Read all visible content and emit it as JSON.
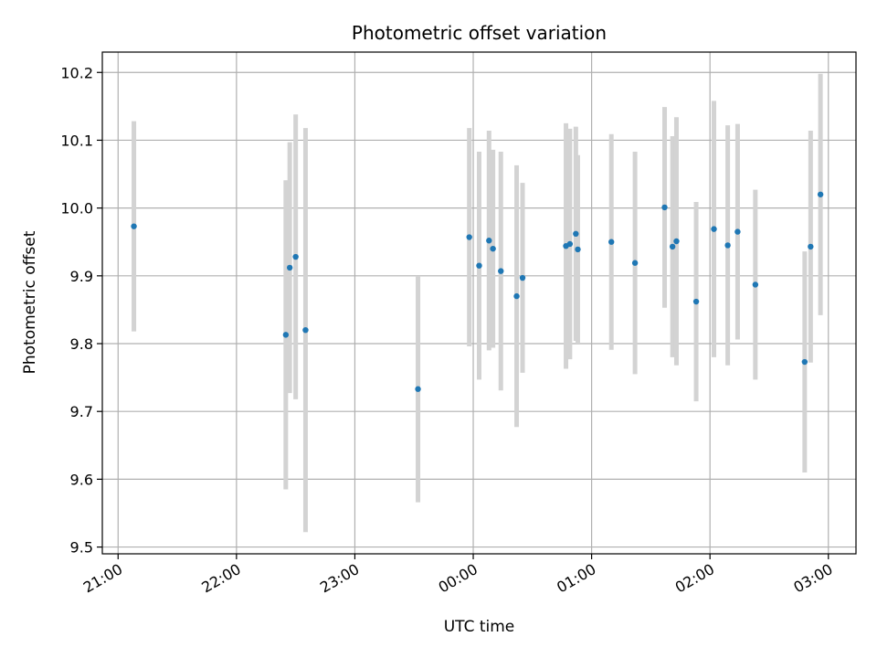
{
  "chart_data": {
    "type": "scatter",
    "title": "Photometric offset variation",
    "xlabel": "UTC time",
    "ylabel": "Photometric offset",
    "xlim": [
      "20:52",
      "03:14"
    ],
    "ylim": [
      9.49,
      10.23
    ],
    "grid": true,
    "x_ticks": [
      "21:00",
      "22:00",
      "23:00",
      "00:00",
      "01:00",
      "02:00",
      "03:00"
    ],
    "y_ticks": [
      "9.5",
      "9.6",
      "9.7",
      "9.8",
      "9.9",
      "10.0",
      "10.1",
      "10.2"
    ],
    "point_color": "#1f77b4",
    "errorbar_color": "#d3d3d3",
    "points": [
      {
        "x": "21:08",
        "y": 9.973,
        "yerr": 0.155
      },
      {
        "x": "22:25",
        "y": 9.813,
        "yerr": 0.228
      },
      {
        "x": "22:27",
        "y": 9.912,
        "yerr": 0.185
      },
      {
        "x": "22:30",
        "y": 9.928,
        "yerr": 0.21
      },
      {
        "x": "22:35",
        "y": 9.82,
        "yerr": 0.298
      },
      {
        "x": "23:32",
        "y": 9.733,
        "yerr": 0.167
      },
      {
        "x": "23:58",
        "y": 9.957,
        "yerr": 0.161
      },
      {
        "x": "00:03",
        "y": 9.915,
        "yerr": 0.168
      },
      {
        "x": "00:08",
        "y": 9.952,
        "yerr": 0.162
      },
      {
        "x": "00:10",
        "y": 9.94,
        "yerr": 0.146
      },
      {
        "x": "00:14",
        "y": 9.907,
        "yerr": 0.176
      },
      {
        "x": "00:22",
        "y": 9.87,
        "yerr": 0.193
      },
      {
        "x": "00:25",
        "y": 9.897,
        "yerr": 0.14
      },
      {
        "x": "00:47",
        "y": 9.944,
        "yerr": 0.181
      },
      {
        "x": "00:49",
        "y": 9.947,
        "yerr": 0.17
      },
      {
        "x": "00:52",
        "y": 9.962,
        "yerr": 0.158
      },
      {
        "x": "00:53",
        "y": 9.939,
        "yerr": 0.139
      },
      {
        "x": "01:10",
        "y": 9.95,
        "yerr": 0.159
      },
      {
        "x": "01:22",
        "y": 9.919,
        "yerr": 0.164
      },
      {
        "x": "01:37",
        "y": 10.001,
        "yerr": 0.148
      },
      {
        "x": "01:41",
        "y": 9.943,
        "yerr": 0.163
      },
      {
        "x": "01:43",
        "y": 9.951,
        "yerr": 0.183
      },
      {
        "x": "01:53",
        "y": 9.862,
        "yerr": 0.147
      },
      {
        "x": "02:02",
        "y": 9.969,
        "yerr": 0.189
      },
      {
        "x": "02:09",
        "y": 9.945,
        "yerr": 0.177
      },
      {
        "x": "02:14",
        "y": 9.965,
        "yerr": 0.159
      },
      {
        "x": "02:23",
        "y": 9.887,
        "yerr": 0.14
      },
      {
        "x": "02:48",
        "y": 9.773,
        "yerr": 0.163
      },
      {
        "x": "02:51",
        "y": 9.943,
        "yerr": 0.171
      },
      {
        "x": "02:56",
        "y": 10.02,
        "yerr": 0.178
      }
    ]
  }
}
